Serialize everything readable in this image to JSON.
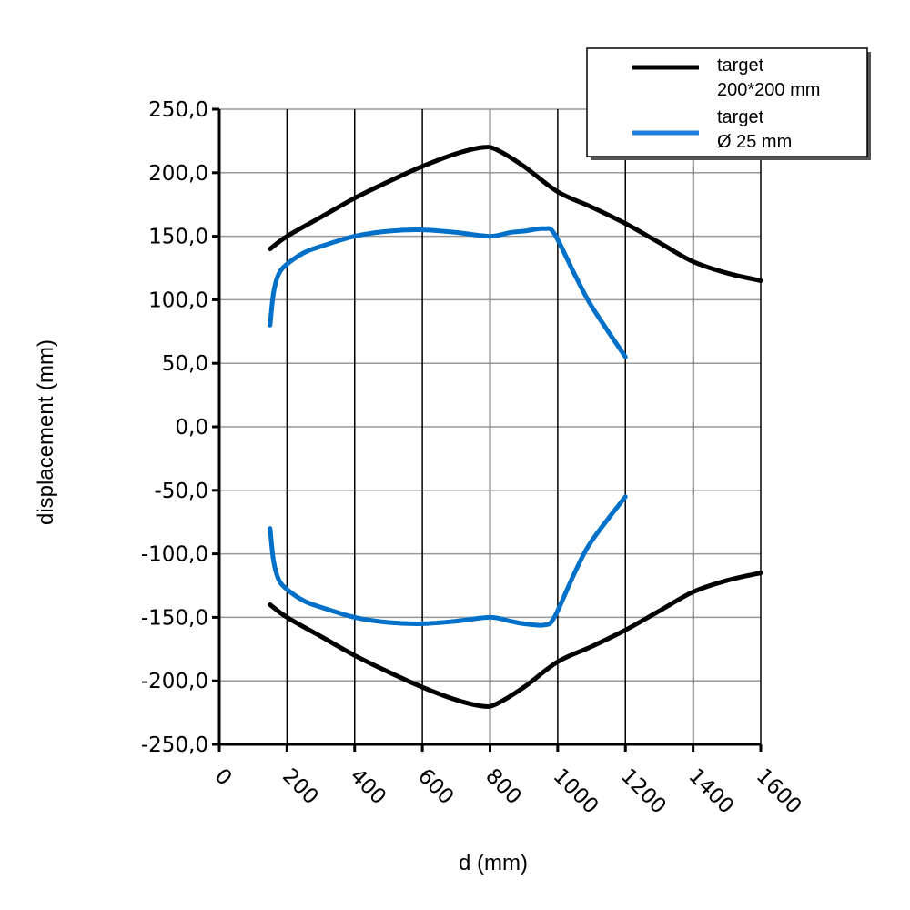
{
  "chart_data": {
    "type": "line",
    "title": "",
    "xlabel": "d (mm)",
    "ylabel": "displacement (mm)",
    "xlim": [
      0,
      1600
    ],
    "ylim": [
      -250,
      250
    ],
    "grid": true,
    "x_ticks": [
      "0",
      "200",
      "400",
      "600",
      "800",
      "1000",
      "1200",
      "1400",
      "1600"
    ],
    "y_ticks": [
      "250,0",
      "200,0",
      "150,0",
      "100,0",
      "50,0",
      "0,0",
      "-50,0",
      "-100,0",
      "-150,0",
      "-200,0",
      "-250,0"
    ],
    "legend_placement": "top-right",
    "series": [
      {
        "name": "target 200*200 mm",
        "legend_lines": [
          "target",
          "200*200 mm"
        ],
        "color": "#000000",
        "upper": {
          "x": [
            150,
            200,
            300,
            400,
            500,
            600,
            700,
            780,
            820,
            900,
            1000,
            1100,
            1200,
            1300,
            1400,
            1500,
            1600
          ],
          "y": [
            140,
            150,
            165,
            180,
            193,
            205,
            215,
            220,
            218,
            205,
            185,
            173,
            160,
            145,
            130,
            121,
            115
          ]
        },
        "lower": {
          "x": [
            150,
            200,
            300,
            400,
            500,
            600,
            700,
            780,
            820,
            900,
            1000,
            1100,
            1200,
            1300,
            1400,
            1500,
            1600
          ],
          "y": [
            -140,
            -150,
            -165,
            -180,
            -193,
            -205,
            -215,
            -220,
            -218,
            -205,
            -185,
            -173,
            -160,
            -145,
            -130,
            -121,
            -115
          ]
        }
      },
      {
        "name": "target Ø 25 mm",
        "legend_lines": [
          "target",
          "Ø 25 mm"
        ],
        "color": "#0070C8",
        "upper": {
          "x": [
            150,
            160,
            175,
            200,
            250,
            300,
            400,
            500,
            600,
            700,
            800,
            860,
            900,
            960,
            990,
            1050,
            1100,
            1200
          ],
          "y": [
            80,
            105,
            120,
            128,
            137,
            142,
            150,
            154,
            155,
            153,
            150,
            153,
            154,
            156,
            152,
            120,
            95,
            55
          ]
        },
        "lower": {
          "x": [
            150,
            160,
            175,
            200,
            250,
            300,
            400,
            500,
            600,
            700,
            800,
            860,
            900,
            960,
            990,
            1050,
            1100,
            1200
          ],
          "y": [
            -80,
            -105,
            -120,
            -128,
            -137,
            -142,
            -150,
            -154,
            -155,
            -153,
            -150,
            -153,
            -155,
            -156,
            -150,
            -115,
            -90,
            -55
          ]
        }
      }
    ]
  }
}
